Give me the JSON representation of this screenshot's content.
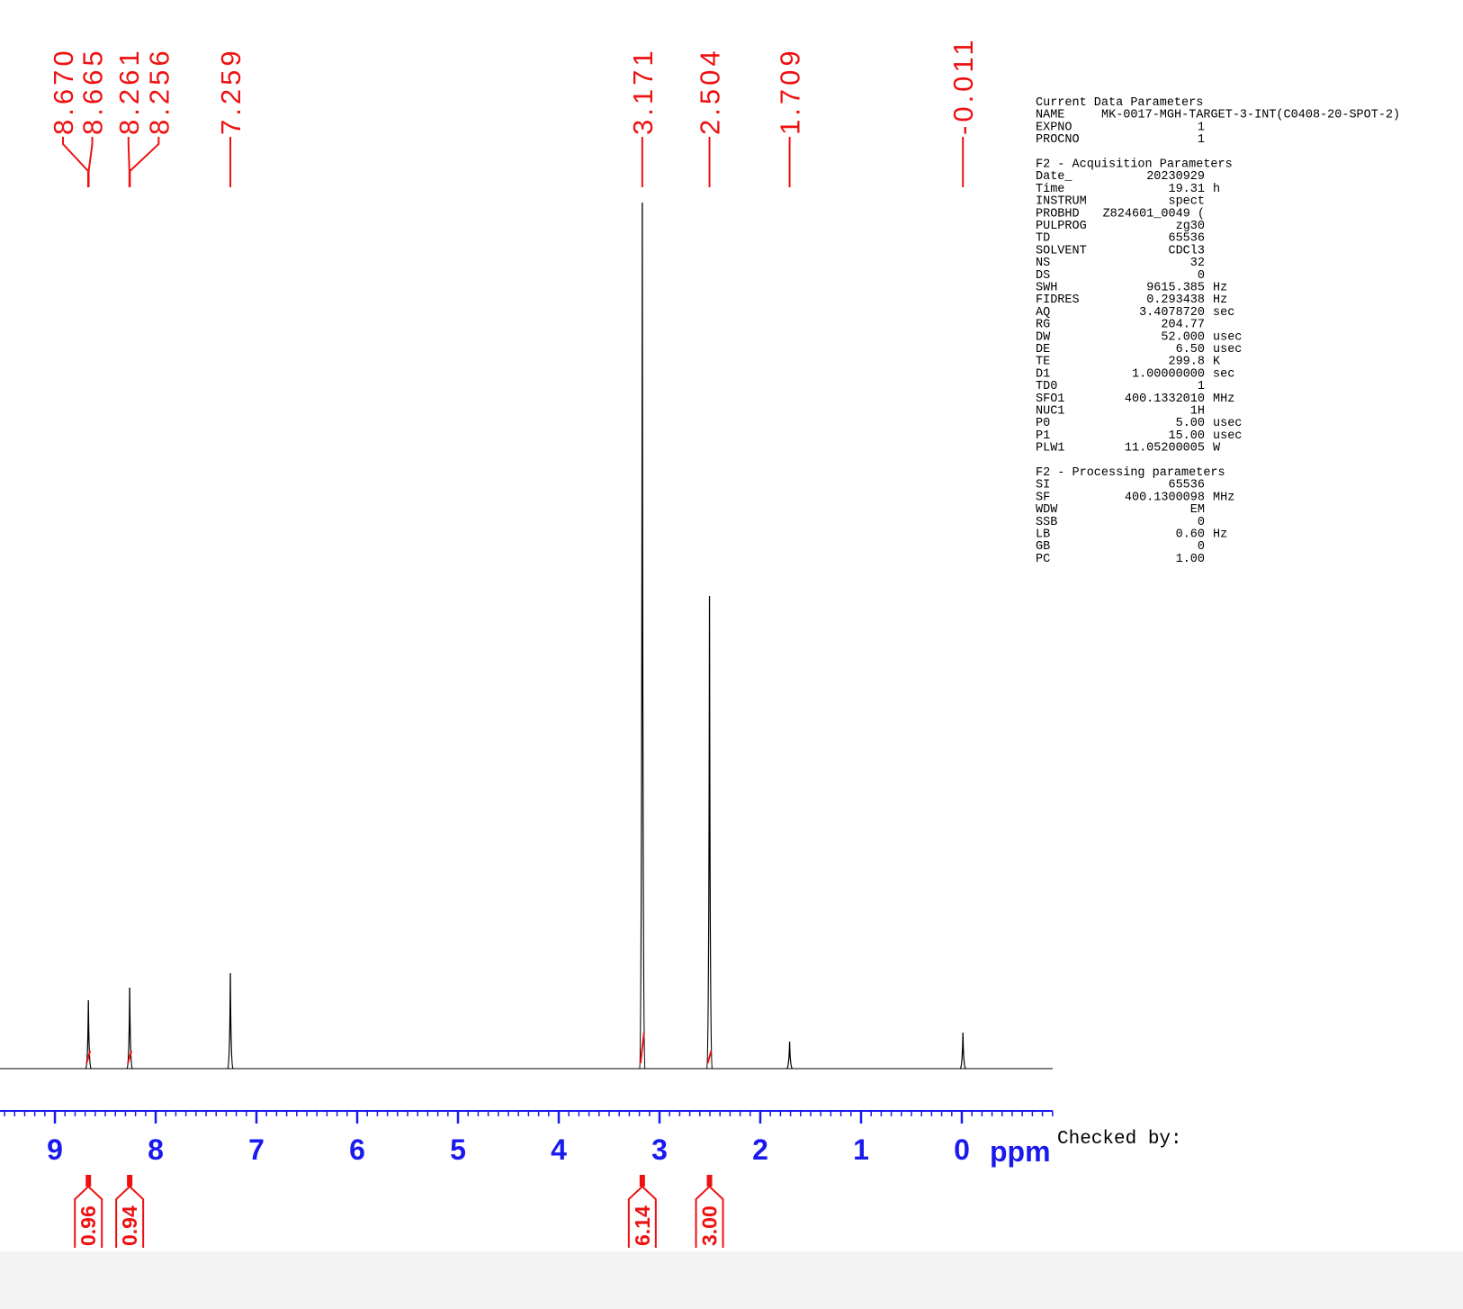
{
  "chart_data": {
    "type": "nmr",
    "x_label": "ppm",
    "xlim": [
      9.545,
      -0.902
    ],
    "xticks": [
      9,
      8,
      7,
      6,
      5,
      4,
      3,
      2,
      1,
      0
    ],
    "xminor_step": 0.1,
    "ylim": [
      0,
      1000
    ],
    "x": [
      8.668,
      8.258,
      7.259,
      3.171,
      2.504,
      1.709,
      -0.011
    ],
    "values": [
      76,
      90,
      106,
      962,
      525,
      30,
      40
    ],
    "peak_labels": {
      "ppm": [
        8.67,
        8.665,
        8.261,
        8.256,
        7.259,
        3.171,
        2.504,
        1.709,
        -0.011
      ],
      "texts": [
        "8.670",
        "8.665",
        "8.261",
        "8.256",
        "7.259",
        "3.171",
        "2.504",
        "1.709",
        "-0.011"
      ]
    },
    "integrals": {
      "ppm": [
        8.668,
        8.258,
        3.171,
        2.504
      ],
      "values": [
        0.96,
        0.94,
        6.14,
        3
      ],
      "value_labels": [
        "0.96",
        "0.94",
        "6.14",
        "3.00"
      ]
    },
    "color": "#000000",
    "label_color": "#ee1111",
    "axis_color": "#1a1aee"
  },
  "parameters": [
    {
      "title": "Current Data Parameters",
      "rows": [
        [
          "NAME",
          "MK-0017-MGH-TARGET-3-INT(C0408-20-SPOT-2)"
        ],
        [
          "EXPNO",
          "1"
        ],
        [
          "PROCNO",
          "1"
        ]
      ]
    },
    {
      "title": "F2 - Acquisition Parameters",
      "rows": [
        [
          "Date_",
          "20230929"
        ],
        [
          "Time",
          "19.31",
          "h"
        ],
        [
          "INSTRUM",
          "spect"
        ],
        [
          "PROBHD",
          "Z824601_0049 ("
        ],
        [
          "PULPROG",
          "zg30"
        ],
        [
          "TD",
          "65536"
        ],
        [
          "SOLVENT",
          "CDCl3"
        ],
        [
          "NS",
          "32"
        ],
        [
          "DS",
          "0"
        ],
        [
          "SWH",
          "9615.385",
          "Hz"
        ],
        [
          "FIDRES",
          "0.293438",
          "Hz"
        ],
        [
          "AQ",
          "3.4078720",
          "sec"
        ],
        [
          "RG",
          "204.77"
        ],
        [
          "DW",
          "52.000",
          "usec"
        ],
        [
          "DE",
          "6.50",
          "usec"
        ],
        [
          "TE",
          "299.8",
          "K"
        ],
        [
          "D1",
          "1.00000000",
          "sec"
        ],
        [
          "TD0",
          "1"
        ],
        [
          "SFO1",
          "400.1332010",
          "MHz"
        ],
        [
          "NUC1",
          "1H"
        ],
        [
          "P0",
          "5.00",
          "usec"
        ],
        [
          "P1",
          "15.00",
          "usec"
        ],
        [
          "PLW1",
          "11.05200005",
          "W"
        ]
      ]
    },
    {
      "title": "F2 - Processing parameters",
      "rows": [
        [
          "SI",
          "65536"
        ],
        [
          "SF",
          "400.1300098",
          "MHz"
        ],
        [
          "WDW",
          "EM"
        ],
        [
          "SSB",
          "0"
        ],
        [
          "LB",
          "0.60",
          "Hz"
        ],
        [
          "GB",
          "0"
        ],
        [
          "PC",
          "1.00"
        ]
      ]
    }
  ],
  "checked_by": "Checked by:"
}
